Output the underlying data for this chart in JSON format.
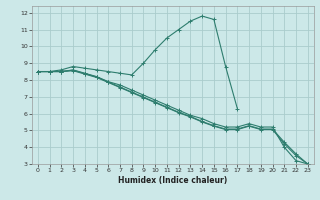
{
  "xlabel": "Humidex (Indice chaleur)",
  "background_color": "#cce8e8",
  "grid_color": "#aacccc",
  "line_color": "#2e7d6e",
  "xlim": [
    -0.5,
    23.5
  ],
  "ylim": [
    3,
    12.4
  ],
  "yticks": [
    3,
    4,
    5,
    6,
    7,
    8,
    9,
    10,
    11,
    12
  ],
  "xticks": [
    0,
    1,
    2,
    3,
    4,
    5,
    6,
    7,
    8,
    9,
    10,
    11,
    12,
    13,
    14,
    15,
    16,
    17,
    18,
    19,
    20,
    21,
    22,
    23
  ],
  "lines": [
    {
      "x": [
        0,
        1,
        2,
        3,
        4,
        5,
        6,
        7,
        8,
        9,
        10,
        11,
        12,
        13,
        14,
        15,
        16,
        17
      ],
      "y": [
        8.5,
        8.5,
        8.6,
        8.8,
        8.7,
        8.6,
        8.5,
        8.4,
        8.3,
        9.0,
        9.8,
        10.5,
        11.0,
        11.5,
        11.8,
        11.6,
        8.8,
        6.3
      ]
    },
    {
      "x": [
        0,
        1,
        2,
        3,
        4,
        5,
        6,
        7,
        8,
        9,
        10,
        11,
        12,
        13,
        14,
        15,
        16,
        17,
        18,
        19,
        20,
        21,
        22,
        23
      ],
      "y": [
        8.5,
        8.5,
        8.5,
        8.6,
        8.4,
        8.2,
        7.9,
        7.7,
        7.4,
        7.1,
        6.8,
        6.5,
        6.2,
        5.9,
        5.7,
        5.4,
        5.2,
        5.2,
        5.4,
        5.2,
        5.2,
        4.0,
        3.2,
        3.0
      ]
    },
    {
      "x": [
        0,
        1,
        2,
        3,
        4,
        5,
        6,
        7,
        8,
        9,
        10,
        11,
        12,
        13,
        14,
        15,
        16,
        17,
        18,
        19,
        20,
        21,
        22,
        23
      ],
      "y": [
        8.5,
        8.5,
        8.5,
        8.55,
        8.35,
        8.15,
        7.85,
        7.55,
        7.25,
        6.95,
        6.65,
        6.35,
        6.05,
        5.8,
        5.5,
        5.25,
        5.05,
        5.05,
        5.25,
        5.05,
        5.05,
        4.2,
        3.5,
        3.0
      ]
    },
    {
      "x": [
        0,
        1,
        2,
        3,
        4,
        5,
        6,
        7,
        8,
        9,
        10,
        11,
        12,
        13,
        14,
        15,
        16,
        17,
        18,
        19,
        20,
        21,
        22,
        23
      ],
      "y": [
        8.5,
        8.5,
        8.5,
        8.58,
        8.38,
        8.18,
        7.88,
        7.58,
        7.28,
        6.98,
        6.68,
        6.38,
        6.08,
        5.83,
        5.53,
        5.28,
        5.08,
        5.08,
        5.28,
        5.08,
        5.08,
        4.3,
        3.6,
        3.0
      ]
    }
  ]
}
